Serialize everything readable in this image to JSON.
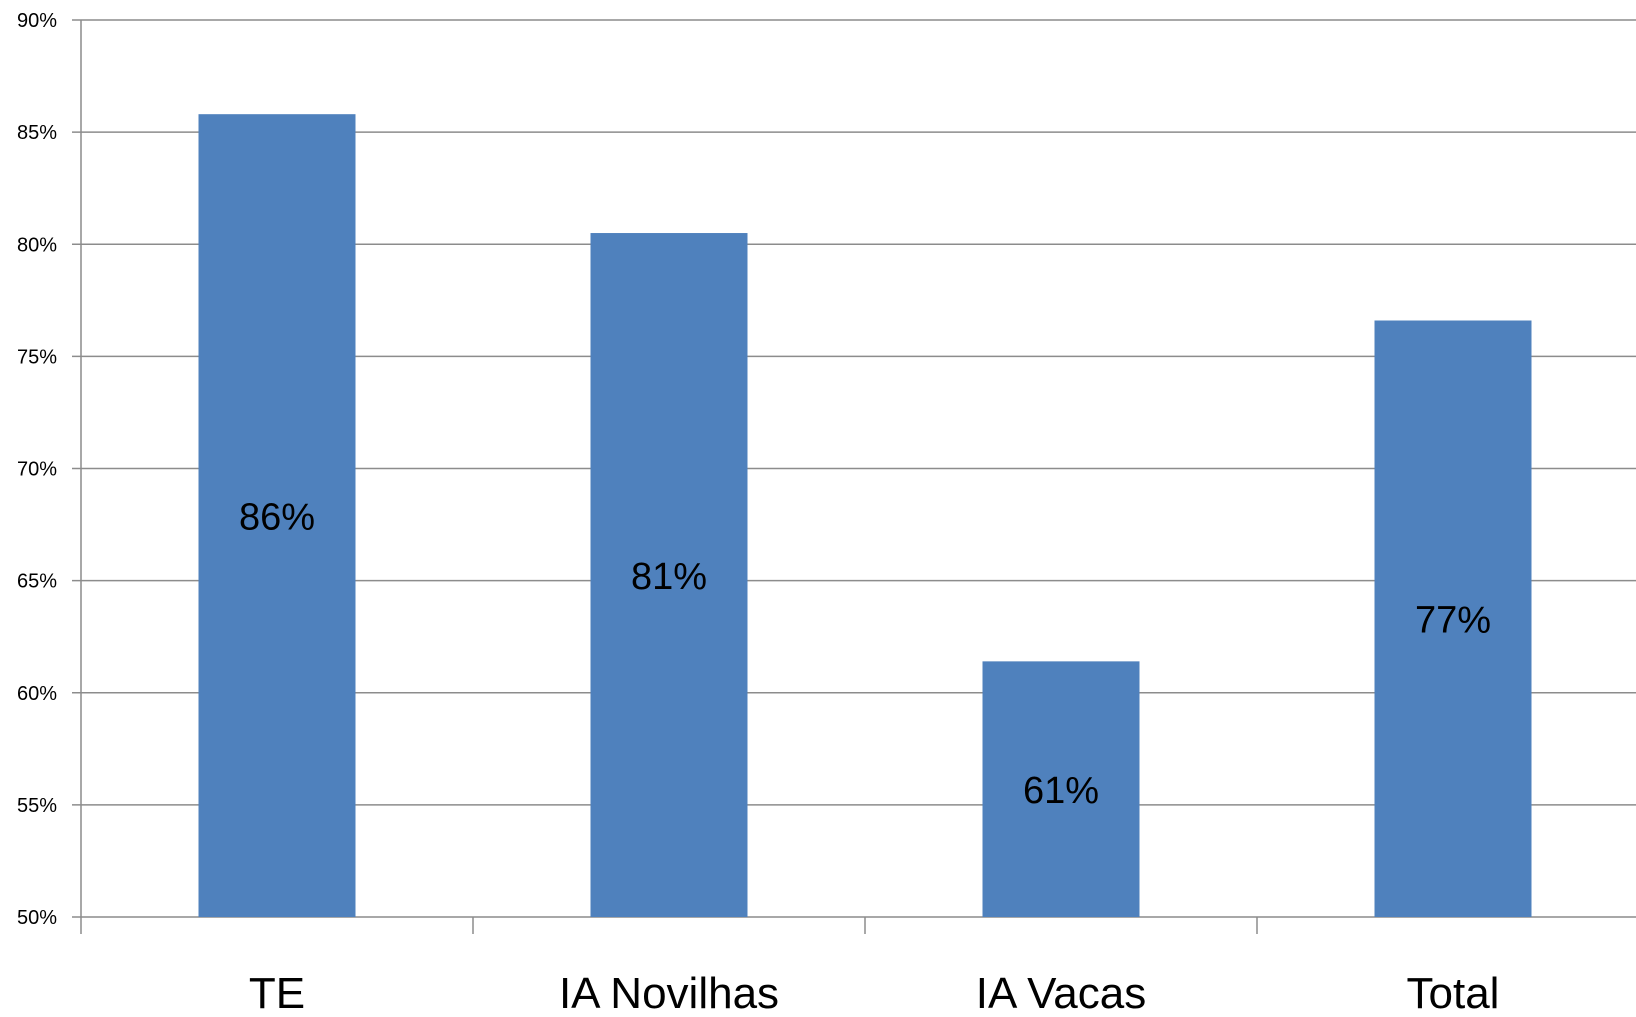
{
  "chart_data": {
    "type": "bar",
    "categories": [
      "TE",
      "IA Novilhas",
      "IA Vacas",
      "Total"
    ],
    "values": [
      0.858,
      0.805,
      0.614,
      0.766
    ],
    "data_labels": [
      "86%",
      "81%",
      "61%",
      "77%"
    ],
    "ylim": [
      0.5,
      0.9
    ],
    "yticks": [
      0.5,
      0.55,
      0.6,
      0.65,
      0.7,
      0.75,
      0.8,
      0.85,
      0.9
    ],
    "ytick_labels": [
      "50%",
      "55%",
      "60%",
      "65%",
      "70%",
      "75%",
      "80%",
      "85%",
      "90%"
    ],
    "grid": true,
    "legend": "none",
    "bar_color": "#4f81bd",
    "grid_color": "#8c8c8c"
  }
}
